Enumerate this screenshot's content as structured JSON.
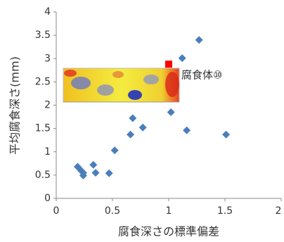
{
  "chart_data": {
    "type": "scatter",
    "x_label": "腐食深さの標準偏差",
    "y_label": "平均腐食深さ(mm)",
    "xlim": [
      0,
      2
    ],
    "xticks": [
      0,
      0.5,
      1,
      1.5,
      2
    ],
    "ylim": [
      0,
      4
    ],
    "yticks": [
      0,
      0.5,
      1,
      1.5,
      2,
      2.5,
      3,
      3.5,
      4
    ],
    "grid": false,
    "series": [
      {
        "color": "#4a7ebb",
        "marker": "diamond",
        "x": [
          0.19,
          0.22,
          0.24,
          0.24,
          0.33,
          0.35,
          0.47,
          0.52,
          0.66,
          0.68,
          0.77,
          1.02,
          1.12,
          1.16,
          1.27,
          1.51
        ],
        "values": [
          0.68,
          0.6,
          0.55,
          0.49,
          0.72,
          0.55,
          0.54,
          1.03,
          1.37,
          1.72,
          1.52,
          1.85,
          3.01,
          1.46,
          3.4,
          1.37
        ]
      },
      {
        "color": "#ff0000",
        "marker": "square",
        "label": "腐食体⑩",
        "x": [
          1.0
        ],
        "values": [
          2.88
        ]
      }
    ]
  }
}
